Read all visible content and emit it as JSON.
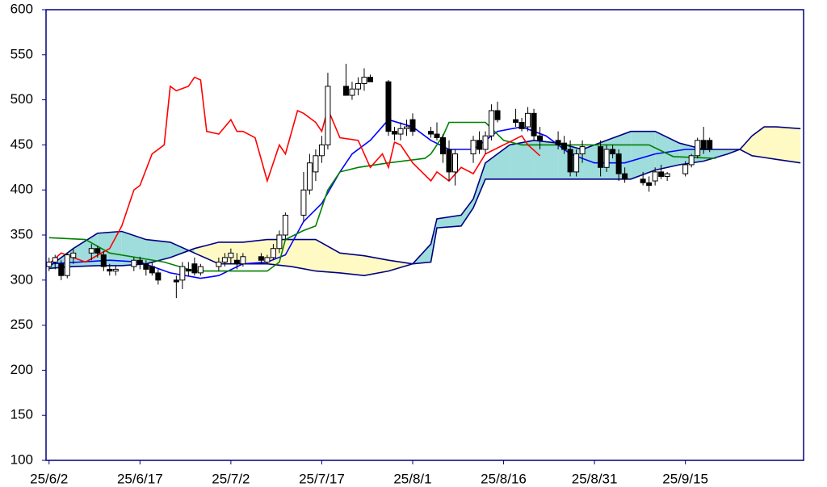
{
  "chart_data": {
    "type": "candlestick",
    "xlim": [
      -0.5,
      124.5
    ],
    "ylim": [
      100,
      600
    ],
    "yticks": [
      100,
      150,
      200,
      250,
      300,
      350,
      400,
      450,
      500,
      550,
      600
    ],
    "xticks": [
      {
        "value": 0,
        "label": "25/6/2"
      },
      {
        "value": 15,
        "label": "25/6/17"
      },
      {
        "value": 30,
        "label": "25/7/2"
      },
      {
        "value": 45,
        "label": "25/7/17"
      },
      {
        "value": 60,
        "label": "25/8/1"
      },
      {
        "value": 75,
        "label": "25/8/16"
      },
      {
        "value": 90,
        "label": "25/8/31"
      },
      {
        "value": 105,
        "label": "25/9/15"
      }
    ],
    "frame_color": "#000080",
    "up_color": "#ffffff",
    "down_color": "#000000",
    "x": [
      0,
      1,
      2,
      3,
      4,
      7,
      8,
      9,
      10,
      11,
      14,
      15,
      16,
      17,
      18,
      21,
      22,
      23,
      24,
      25,
      28,
      29,
      30,
      31,
      32,
      35,
      36,
      37,
      38,
      39,
      42,
      43,
      44,
      45,
      46,
      49,
      50,
      51,
      52,
      53,
      56,
      57,
      58,
      59,
      60,
      63,
      64,
      65,
      66,
      67,
      70,
      71,
      72,
      73,
      74,
      77,
      78,
      79,
      80,
      81,
      84,
      85,
      86,
      87,
      88,
      91,
      92,
      93,
      94,
      95,
      98,
      99,
      100,
      101,
      102,
      105,
      106,
      107,
      108,
      109
    ],
    "open": [
      315,
      320,
      318,
      305,
      325,
      330,
      335,
      328,
      312,
      310,
      315,
      322,
      318,
      315,
      308,
      300,
      300,
      312,
      318,
      308,
      315,
      320,
      325,
      322,
      318,
      326,
      320,
      325,
      335,
      350,
      372,
      400,
      420,
      438,
      450,
      515,
      505,
      512,
      518,
      525,
      520,
      465,
      462,
      468,
      478,
      465,
      462,
      458,
      445,
      420,
      440,
      455,
      445,
      460,
      488,
      478,
      475,
      470,
      485,
      460,
      455,
      452,
      445,
      420,
      440,
      448,
      425,
      445,
      440,
      418,
      412,
      408,
      410,
      420,
      415,
      418,
      428,
      438,
      455,
      455
    ],
    "high": [
      325,
      328,
      322,
      330,
      335,
      340,
      338,
      332,
      318,
      316,
      325,
      326,
      322,
      320,
      312,
      305,
      320,
      320,
      325,
      318,
      325,
      330,
      335,
      330,
      330,
      330,
      328,
      340,
      355,
      375,
      420,
      440,
      445,
      460,
      530,
      540,
      520,
      525,
      535,
      528,
      522,
      470,
      475,
      478,
      485,
      470,
      475,
      462,
      455,
      445,
      460,
      465,
      465,
      495,
      498,
      490,
      480,
      492,
      490,
      470,
      465,
      460,
      455,
      445,
      455,
      455,
      450,
      450,
      445,
      425,
      420,
      415,
      425,
      428,
      420,
      432,
      440,
      458,
      470,
      458
    ],
    "low": [
      310,
      312,
      300,
      302,
      318,
      322,
      325,
      310,
      305,
      305,
      310,
      312,
      305,
      305,
      295,
      280,
      290,
      305,
      305,
      305,
      310,
      315,
      318,
      312,
      315,
      318,
      318,
      322,
      330,
      345,
      365,
      395,
      410,
      430,
      445,
      505,
      500,
      505,
      510,
      520,
      460,
      455,
      455,
      460,
      460,
      458,
      455,
      430,
      410,
      405,
      430,
      440,
      440,
      455,
      475,
      470,
      465,
      465,
      455,
      445,
      445,
      440,
      415,
      415,
      430,
      415,
      420,
      435,
      410,
      408,
      405,
      398,
      405,
      412,
      410,
      415,
      425,
      435,
      440,
      442
    ],
    "close": [
      320,
      325,
      305,
      328,
      330,
      335,
      330,
      315,
      310,
      312,
      322,
      318,
      312,
      308,
      300,
      298,
      315,
      310,
      308,
      315,
      320,
      325,
      330,
      318,
      326,
      322,
      325,
      335,
      350,
      372,
      400,
      430,
      438,
      450,
      515,
      505,
      512,
      518,
      525,
      520,
      465,
      462,
      468,
      470,
      465,
      462,
      458,
      440,
      420,
      440,
      455,
      445,
      460,
      488,
      478,
      475,
      468,
      485,
      460,
      455,
      450,
      445,
      420,
      440,
      448,
      425,
      445,
      440,
      418,
      412,
      408,
      405,
      420,
      415,
      418,
      428,
      438,
      455,
      445,
      445
    ],
    "cloud": {
      "edge_color": "#000080",
      "up_fill": "#9fdcdc",
      "down_fill": "#fffac4",
      "x": [
        0,
        4,
        8,
        12,
        16,
        20,
        24,
        28,
        32,
        36,
        40,
        44,
        48,
        52,
        56,
        60,
        63,
        64,
        68,
        70,
        72,
        76,
        80,
        84,
        88,
        92,
        96,
        100,
        104,
        108,
        112,
        114,
        116,
        118,
        120,
        124
      ],
      "span_a": [
        315,
        335,
        352,
        354,
        345,
        342,
        330,
        318,
        318,
        318,
        315,
        310,
        308,
        305,
        310,
        318,
        340,
        368,
        372,
        390,
        430,
        450,
        455,
        452,
        445,
        455,
        465,
        465,
        452,
        445,
        445,
        445,
        438,
        436,
        434,
        430
      ],
      "span_b": [
        313,
        315,
        316,
        316,
        318,
        325,
        335,
        342,
        342,
        345,
        345,
        345,
        330,
        327,
        322,
        318,
        320,
        358,
        360,
        380,
        412,
        412,
        412,
        412,
        412,
        412,
        412,
        422,
        428,
        432,
        440,
        445,
        460,
        470,
        470,
        468
      ]
    },
    "lines": [
      {
        "color": "#0000ff",
        "x": [
          0,
          5,
          10,
          15,
          20,
          25,
          28,
          32,
          36,
          39,
          42,
          45,
          48,
          50,
          53,
          56,
          60,
          63,
          66,
          70,
          74,
          78,
          82,
          86,
          90,
          95,
          100,
          105,
          109
        ],
        "values": [
          318,
          320,
          322,
          320,
          308,
          302,
          305,
          318,
          320,
          328,
          365,
          385,
          420,
          440,
          455,
          478,
          470,
          455,
          445,
          445,
          465,
          470,
          460,
          440,
          430,
          430,
          440,
          445,
          445
        ]
      },
      {
        "color": "#008000",
        "x": [
          0,
          6,
          10,
          19,
          24,
          36,
          38,
          39,
          42,
          44,
          46,
          48,
          51,
          56,
          62,
          63,
          65,
          66,
          72,
          75,
          78,
          86,
          99,
          103,
          110
        ],
        "values": [
          347,
          345,
          330,
          320,
          310,
          310,
          320,
          345,
          355,
          360,
          400,
          420,
          425,
          430,
          435,
          440,
          460,
          475,
          475,
          455,
          450,
          450,
          450,
          437,
          435
        ]
      },
      {
        "color": "#ff0000",
        "x": [
          0,
          2,
          6,
          10,
          12,
          14,
          15,
          17,
          19,
          20,
          21,
          23,
          24,
          25,
          26,
          28,
          30,
          31,
          32,
          34,
          36,
          38,
          39,
          41,
          42,
          44,
          45,
          46,
          48,
          51,
          53,
          55,
          56,
          57,
          58,
          60,
          63,
          64,
          66,
          68,
          70,
          72,
          78,
          79,
          81
        ],
        "values": [
          318,
          330,
          320,
          335,
          360,
          400,
          405,
          440,
          450,
          515,
          510,
          515,
          525,
          522,
          465,
          462,
          478,
          465,
          465,
          458,
          410,
          450,
          440,
          488,
          485,
          475,
          465,
          490,
          458,
          455,
          425,
          440,
          425,
          453,
          450,
          430,
          410,
          420,
          410,
          425,
          418,
          440,
          460,
          450,
          438
        ]
      }
    ]
  }
}
